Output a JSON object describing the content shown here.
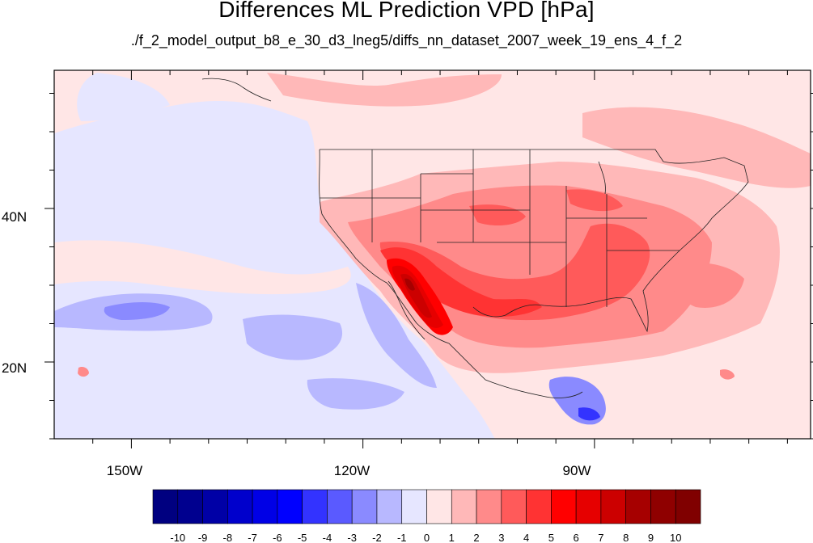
{
  "title": "Differences ML Prediction VPD [hPa]",
  "subtitle": "./f_2_model_output_b8_e_30_d3_lneg5/diffs_nn_dataset_2007_week_19_ens_4_f_2",
  "map": {
    "projection": "lat-lon cylindrical equidistant",
    "extent": {
      "lon_min": -160,
      "lon_max": -62,
      "lat_min": 10,
      "lat_max": 58
    },
    "y_ticks": [
      {
        "value": 40,
        "label": "40N"
      },
      {
        "value": 20,
        "label": "20N"
      }
    ],
    "x_ticks": [
      {
        "value": -150,
        "label": "150W"
      },
      {
        "value": -120,
        "label": "120W"
      },
      {
        "value": -90,
        "label": "90W"
      }
    ]
  },
  "colorbar": {
    "labels": [
      "-10",
      "-9",
      "-8",
      "-7",
      "-6",
      "-5",
      "-4",
      "-3",
      "-2",
      "-1",
      "0",
      "1",
      "2",
      "3",
      "4",
      "5",
      "6",
      "7",
      "8",
      "9",
      "10"
    ],
    "colors": [
      "#000080",
      "#00008f",
      "#0000a6",
      "#0000cc",
      "#0000e6",
      "#0000ff",
      "#3333ff",
      "#5a5aff",
      "#8a8aff",
      "#b8b8ff",
      "#e6e6ff",
      "#ffe6e6",
      "#ffb8b8",
      "#ff8a8a",
      "#ff5a5a",
      "#ff3333",
      "#ff0000",
      "#e60000",
      "#cc0000",
      "#a60000",
      "#8f0000",
      "#800000"
    ]
  }
}
